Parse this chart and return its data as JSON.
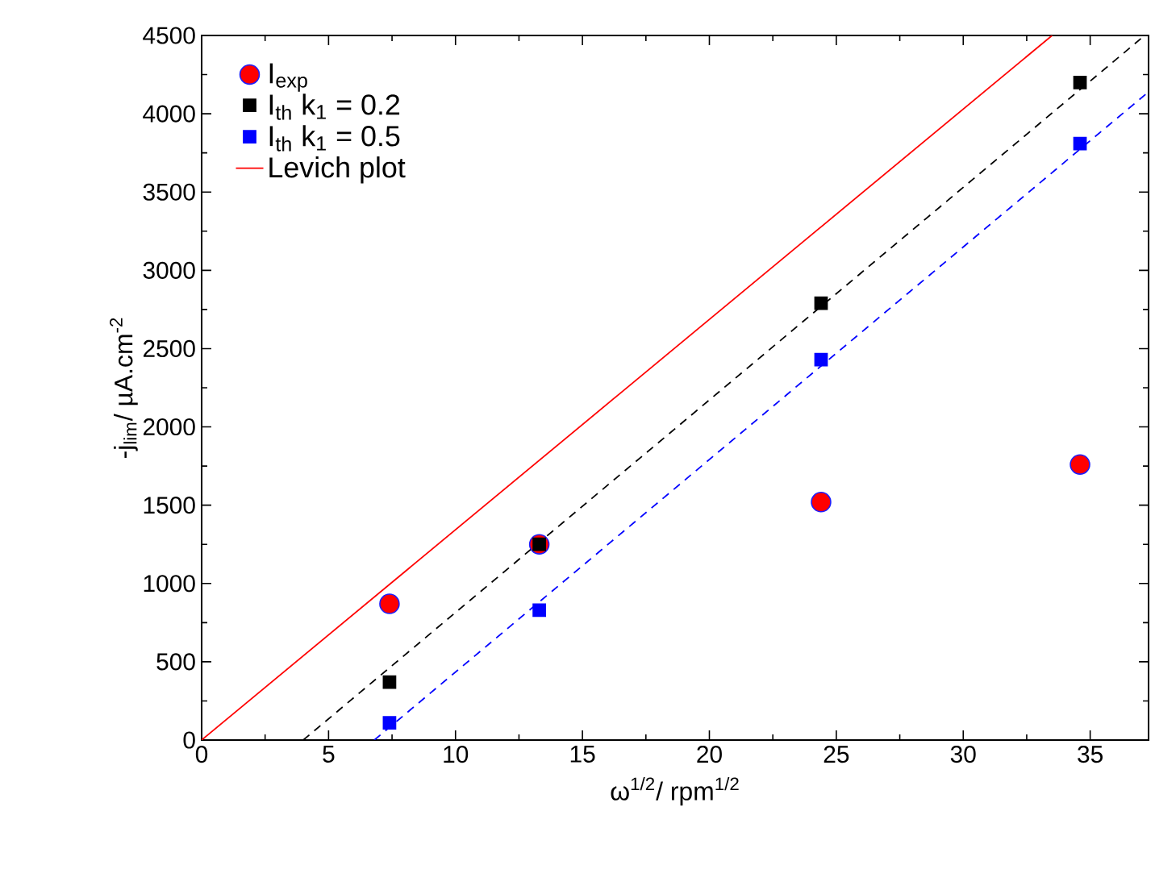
{
  "chart_data": {
    "type": "scatter",
    "xlabel": "ω$^{1/2}$/ rpm$^{1/2}$",
    "ylabel": "-j$_{lim}$/ µA.cm$^{-2}$",
    "xlim": [
      0,
      37.3
    ],
    "ylim": [
      0,
      4500
    ],
    "xticks": [
      0,
      5,
      10,
      15,
      20,
      25,
      30,
      35
    ],
    "yticks": [
      0,
      500,
      1000,
      1500,
      2000,
      2500,
      3000,
      3500,
      4000,
      4500
    ],
    "grid": false,
    "legend": "top left",
    "series": [
      {
        "name": "I$_{exp}$",
        "marker": "circle",
        "color": "#ff0000",
        "x": [
          7.4,
          13.3,
          24.4,
          34.6
        ],
        "values": [
          870,
          1250,
          1520,
          1760
        ]
      },
      {
        "name": "I$_{th}$ k$_{1}$ = 0.2",
        "marker": "square",
        "color": "#000000",
        "x": [
          7.4,
          13.3,
          24.4,
          34.6
        ],
        "values": [
          370,
          1250,
          2790,
          4200
        ]
      },
      {
        "name": "I$_{th}$ k$_{1}$ = 0.5",
        "marker": "square",
        "color": "#0000ff",
        "x": [
          7.4,
          13.3,
          24.4,
          34.6
        ],
        "values": [
          110,
          830,
          2430,
          3810
        ]
      },
      {
        "name": "Levich plot",
        "type": "line",
        "line_style": "solid",
        "color": "#ff0000",
        "x": [
          0,
          33.5
        ],
        "values": [
          0,
          4500
        ]
      },
      {
        "type": "line",
        "line_style": "dashed",
        "color": "#000000",
        "x": [
          4.0,
          37.0
        ],
        "values": [
          0,
          4480
        ]
      },
      {
        "type": "line",
        "line_style": "dashed",
        "color": "#0000ff",
        "x": [
          6.8,
          37.3
        ],
        "values": [
          0,
          4140
        ]
      }
    ]
  }
}
